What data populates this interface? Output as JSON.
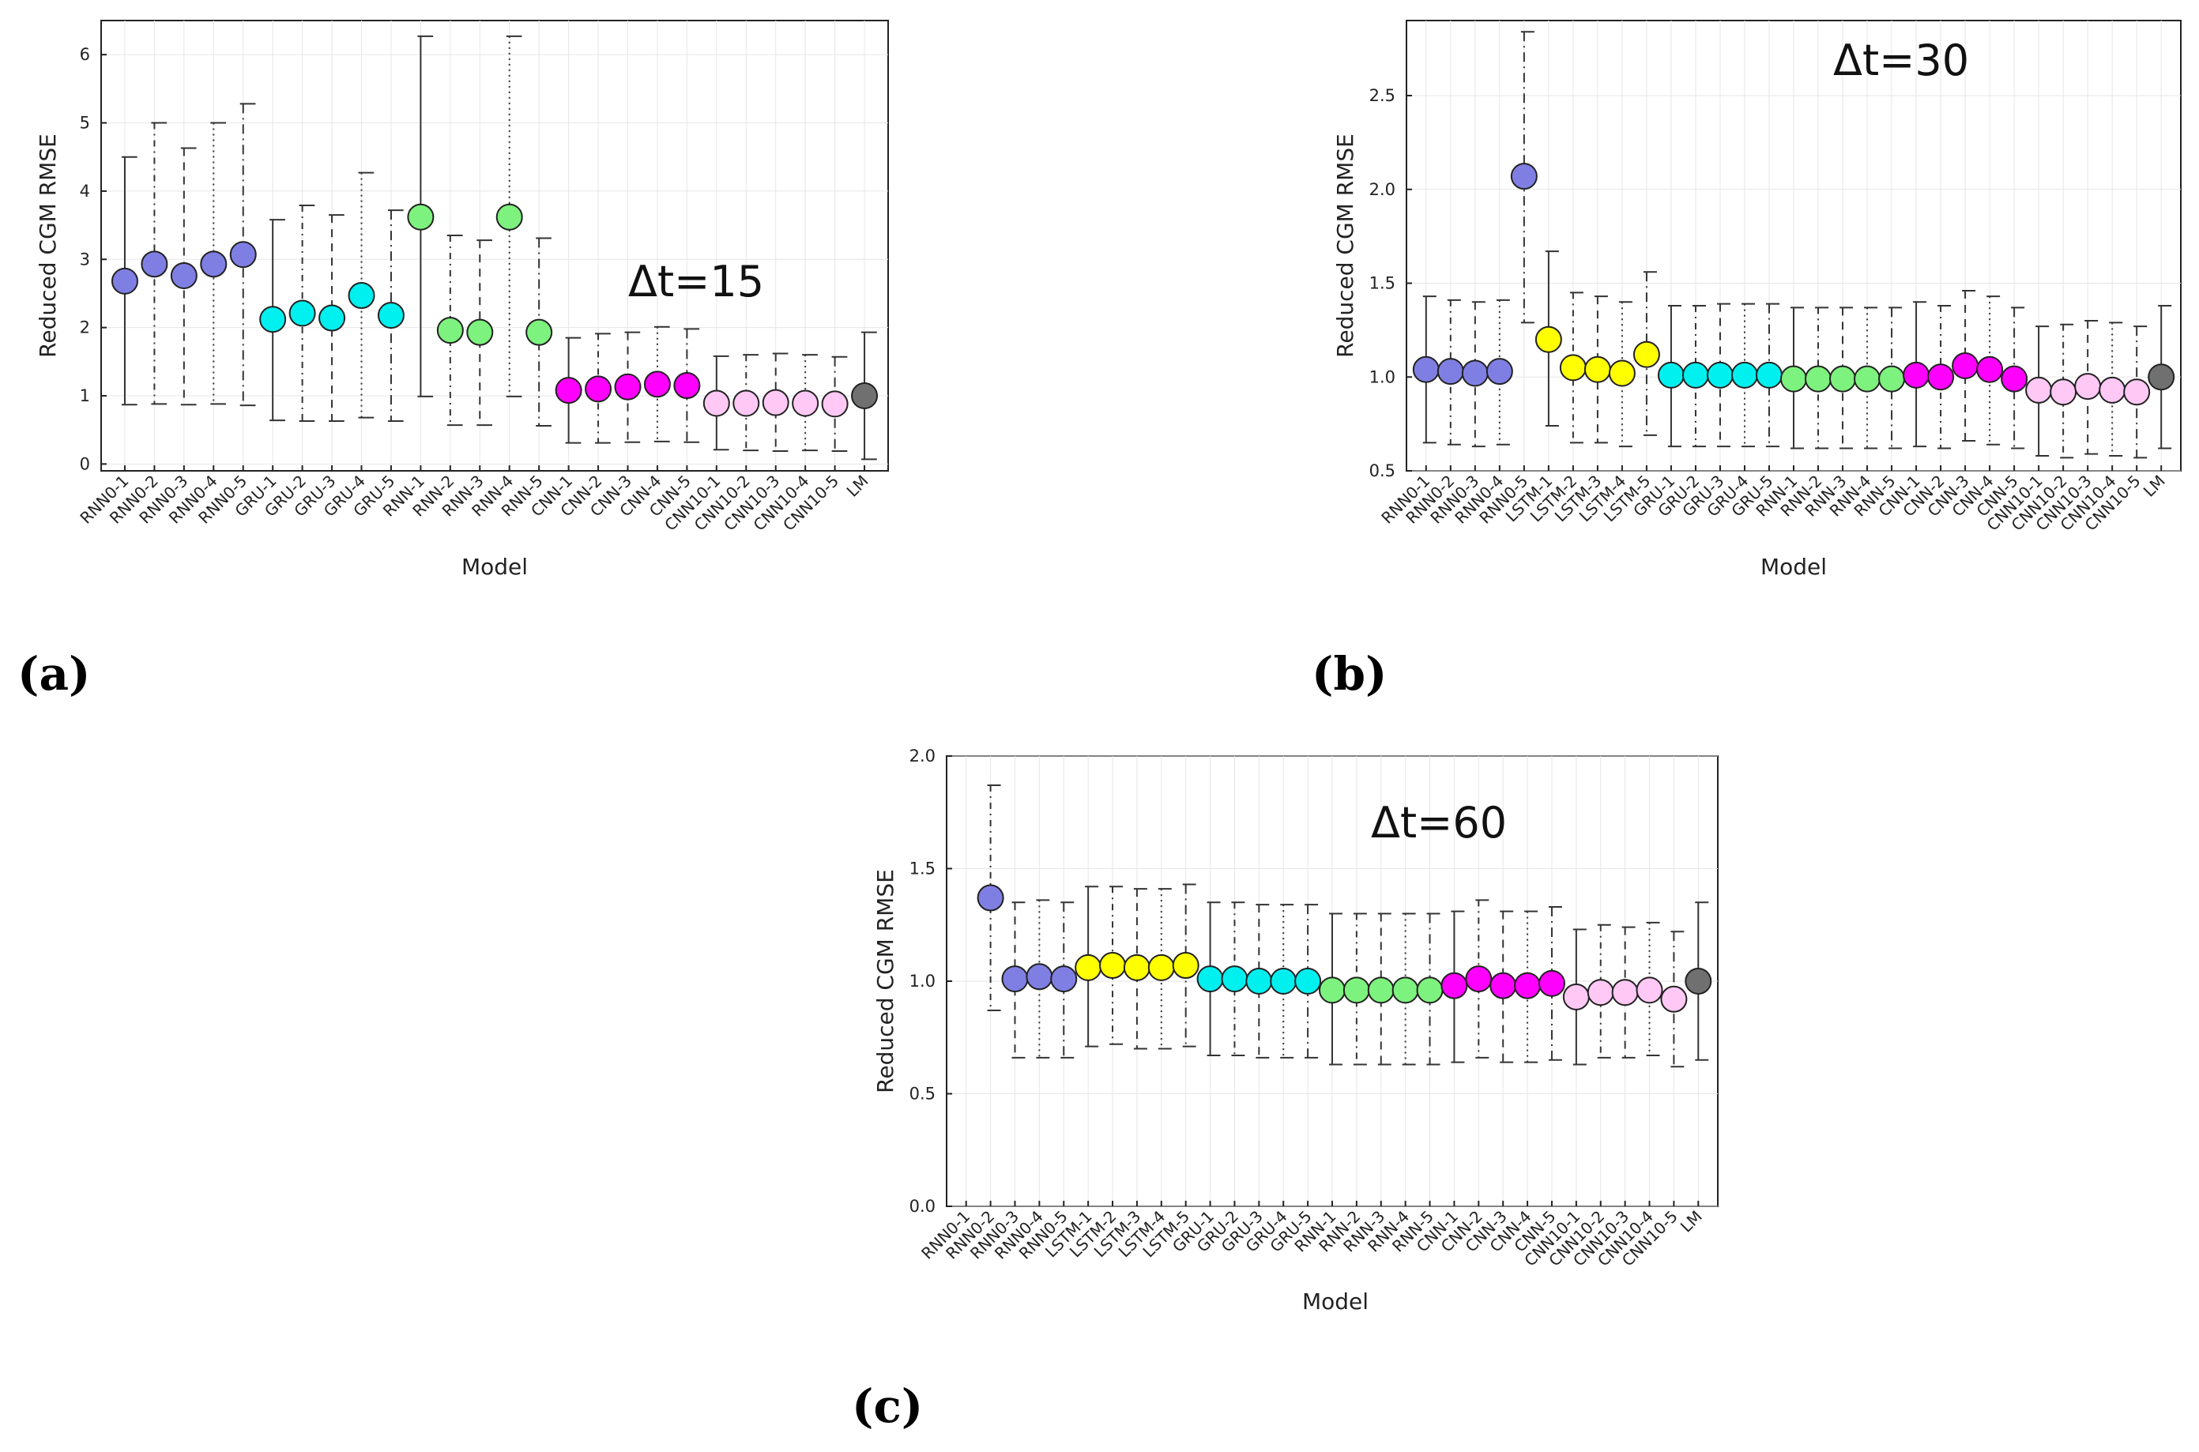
{
  "panels": [
    {
      "label": "(a)",
      "annotation": "Δt=15",
      "xlabel": "Model",
      "ylabel": "Reduced CGM RMSE"
    },
    {
      "label": "(b)",
      "annotation": "Δt=30",
      "xlabel": "Model",
      "ylabel": "Reduced CGM RMSE"
    },
    {
      "label": "(c)",
      "annotation": "Δt=60",
      "xlabel": "Model",
      "ylabel": "Reduced CGM RMSE"
    }
  ],
  "colors": {
    "RNN0": "#7f7fe3",
    "GRU": "#00f0f0",
    "RNN": "#7ef27e",
    "CNN": "#ff00ff",
    "CNN10": "#ffc8f5",
    "LSTM": "#ffff00",
    "LM": "#707070"
  },
  "chart_data": [
    {
      "type": "scatter",
      "title": "Δt=15",
      "xlabel": "Model",
      "ylabel": "Reduced CGM RMSE",
      "ylim": [
        -0.1,
        6.5
      ],
      "yticks": [
        "0",
        "1",
        "2",
        "3",
        "4",
        "5",
        "6"
      ],
      "grid": true,
      "categories": [
        "RNN0-1",
        "RNN0-2",
        "RNN0-3",
        "RNN0-4",
        "RNN0-5",
        "GRU-1",
        "GRU-2",
        "GRU-3",
        "GRU-4",
        "GRU-5",
        "RNN-1",
        "RNN-2",
        "RNN-3",
        "RNN-4",
        "RNN-5",
        "CNN-1",
        "CNN-2",
        "CNN-3",
        "CNN-4",
        "CNN-5",
        "CNN10-1",
        "CNN10-2",
        "CNN10-3",
        "CNN10-4",
        "CNN10-5",
        "LM"
      ],
      "groups": [
        "RNN0",
        "RNN0",
        "RNN0",
        "RNN0",
        "RNN0",
        "GRU",
        "GRU",
        "GRU",
        "GRU",
        "GRU",
        "RNN",
        "RNN",
        "RNN",
        "RNN",
        "RNN",
        "CNN",
        "CNN",
        "CNN",
        "CNN",
        "CNN",
        "CNN10",
        "CNN10",
        "CNN10",
        "CNN10",
        "CNN10",
        "LM"
      ],
      "values": [
        2.68,
        2.93,
        2.76,
        2.93,
        3.07,
        2.12,
        2.21,
        2.14,
        2.47,
        2.18,
        3.62,
        1.96,
        1.93,
        3.62,
        1.93,
        1.08,
        1.1,
        1.13,
        1.17,
        1.15,
        0.89,
        0.89,
        0.9,
        0.89,
        0.88,
        1.0
      ],
      "upper": [
        4.5,
        5.0,
        4.63,
        5.0,
        5.28,
        3.58,
        3.79,
        3.65,
        4.27,
        3.72,
        6.27,
        3.35,
        3.28,
        6.27,
        3.31,
        1.85,
        1.91,
        1.93,
        2.01,
        1.98,
        1.58,
        1.6,
        1.62,
        1.6,
        1.57,
        1.93
      ],
      "lower": [
        0.87,
        0.88,
        0.87,
        0.88,
        0.86,
        0.64,
        0.63,
        0.63,
        0.68,
        0.63,
        0.99,
        0.57,
        0.57,
        0.99,
        0.56,
        0.31,
        0.31,
        0.32,
        0.33,
        0.32,
        0.21,
        0.2,
        0.19,
        0.2,
        0.19,
        0.07
      ]
    },
    {
      "type": "scatter",
      "title": "Δt=30",
      "xlabel": "Model",
      "ylabel": "Reduced CGM RMSE",
      "ylim": [
        0.5,
        2.9
      ],
      "yticks": [
        "0.5",
        "1.0",
        "1.5",
        "2.0",
        "2.5"
      ],
      "grid": true,
      "categories": [
        "RNN0-1",
        "RNN0-2",
        "RNN0-3",
        "RNN0-4",
        "RNN0-5",
        "LSTM-1",
        "LSTM-2",
        "LSTM-3",
        "LSTM-4",
        "LSTM-5",
        "GRU-1",
        "GRU-2",
        "GRU-3",
        "GRU-4",
        "GRU-5",
        "RNN-1",
        "RNN-2",
        "RNN-3",
        "RNN-4",
        "RNN-5",
        "CNN-1",
        "CNN-2",
        "CNN-3",
        "CNN-4",
        "CNN-5",
        "CNN10-1",
        "CNN10-2",
        "CNN10-3",
        "CNN10-4",
        "CNN10-5",
        "LM"
      ],
      "groups": [
        "RNN0",
        "RNN0",
        "RNN0",
        "RNN0",
        "RNN0",
        "LSTM",
        "LSTM",
        "LSTM",
        "LSTM",
        "LSTM",
        "GRU",
        "GRU",
        "GRU",
        "GRU",
        "GRU",
        "RNN",
        "RNN",
        "RNN",
        "RNN",
        "RNN",
        "CNN",
        "CNN",
        "CNN",
        "CNN",
        "CNN",
        "CNN10",
        "CNN10",
        "CNN10",
        "CNN10",
        "CNN10",
        "LM"
      ],
      "values": [
        1.04,
        1.03,
        1.02,
        1.03,
        2.07,
        1.2,
        1.05,
        1.04,
        1.02,
        1.12,
        1.01,
        1.01,
        1.01,
        1.01,
        1.01,
        0.99,
        0.99,
        0.99,
        0.99,
        0.99,
        1.01,
        1.0,
        1.06,
        1.04,
        0.99,
        0.93,
        0.92,
        0.95,
        0.93,
        0.92,
        1.0
      ],
      "upper": [
        1.43,
        1.41,
        1.4,
        1.41,
        2.84,
        1.67,
        1.45,
        1.43,
        1.4,
        1.56,
        1.38,
        1.38,
        1.39,
        1.39,
        1.39,
        1.37,
        1.37,
        1.37,
        1.37,
        1.37,
        1.4,
        1.38,
        1.46,
        1.43,
        1.37,
        1.27,
        1.28,
        1.3,
        1.29,
        1.27,
        1.38
      ],
      "lower": [
        0.65,
        0.64,
        0.63,
        0.64,
        1.29,
        0.74,
        0.65,
        0.65,
        0.63,
        0.69,
        0.63,
        0.63,
        0.63,
        0.63,
        0.63,
        0.62,
        0.62,
        0.62,
        0.62,
        0.62,
        0.63,
        0.62,
        0.66,
        0.64,
        0.62,
        0.58,
        0.57,
        0.59,
        0.58,
        0.57,
        0.62
      ]
    },
    {
      "type": "scatter",
      "title": "Δt=60",
      "xlabel": "Model",
      "ylabel": "Reduced CGM RMSE",
      "ylim": [
        0.0,
        2.0
      ],
      "yticks": [
        "0.0",
        "0.5",
        "1.0",
        "1.5",
        "2.0"
      ],
      "grid": true,
      "categories": [
        "RNN0-1",
        "RNN0-2",
        "RNN0-3",
        "RNN0-4",
        "RNN0-5",
        "LSTM-1",
        "LSTM-2",
        "LSTM-3",
        "LSTM-4",
        "LSTM-5",
        "GRU-1",
        "GRU-2",
        "GRU-3",
        "GRU-4",
        "GRU-5",
        "RNN-1",
        "RNN-2",
        "RNN-3",
        "RNN-4",
        "RNN-5",
        "CNN-1",
        "CNN-2",
        "CNN-3",
        "CNN-4",
        "CNN-5",
        "CNN10-1",
        "CNN10-2",
        "CNN10-3",
        "CNN10-4",
        "CNN10-5",
        "LM"
      ],
      "groups": [
        "RNN0",
        "RNN0",
        "RNN0",
        "RNN0",
        "RNN0",
        "LSTM",
        "LSTM",
        "LSTM",
        "LSTM",
        "LSTM",
        "GRU",
        "GRU",
        "GRU",
        "GRU",
        "GRU",
        "RNN",
        "RNN",
        "RNN",
        "RNN",
        "RNN",
        "CNN",
        "CNN",
        "CNN",
        "CNN",
        "CNN",
        "CNN10",
        "CNN10",
        "CNN10",
        "CNN10",
        "CNN10",
        "LM"
      ],
      "values": [
        null,
        1.37,
        1.01,
        1.02,
        1.01,
        1.06,
        1.07,
        1.06,
        1.06,
        1.07,
        1.01,
        1.01,
        1.0,
        1.0,
        1.0,
        0.96,
        0.96,
        0.96,
        0.96,
        0.96,
        0.98,
        1.01,
        0.98,
        0.98,
        0.99,
        0.93,
        0.95,
        0.95,
        0.96,
        0.92,
        1.0
      ],
      "upper": [
        null,
        1.87,
        1.35,
        1.36,
        1.35,
        1.42,
        1.42,
        1.41,
        1.41,
        1.43,
        1.35,
        1.35,
        1.34,
        1.34,
        1.34,
        1.3,
        1.3,
        1.3,
        1.3,
        1.3,
        1.31,
        1.36,
        1.31,
        1.31,
        1.33,
        1.23,
        1.25,
        1.24,
        1.26,
        1.22,
        1.35
      ],
      "lower": [
        null,
        0.87,
        0.66,
        0.66,
        0.66,
        0.71,
        0.72,
        0.7,
        0.7,
        0.71,
        0.67,
        0.67,
        0.66,
        0.66,
        0.66,
        0.63,
        0.63,
        0.63,
        0.63,
        0.63,
        0.64,
        0.66,
        0.64,
        0.64,
        0.65,
        0.63,
        0.66,
        0.66,
        0.67,
        0.62,
        0.65
      ]
    }
  ]
}
